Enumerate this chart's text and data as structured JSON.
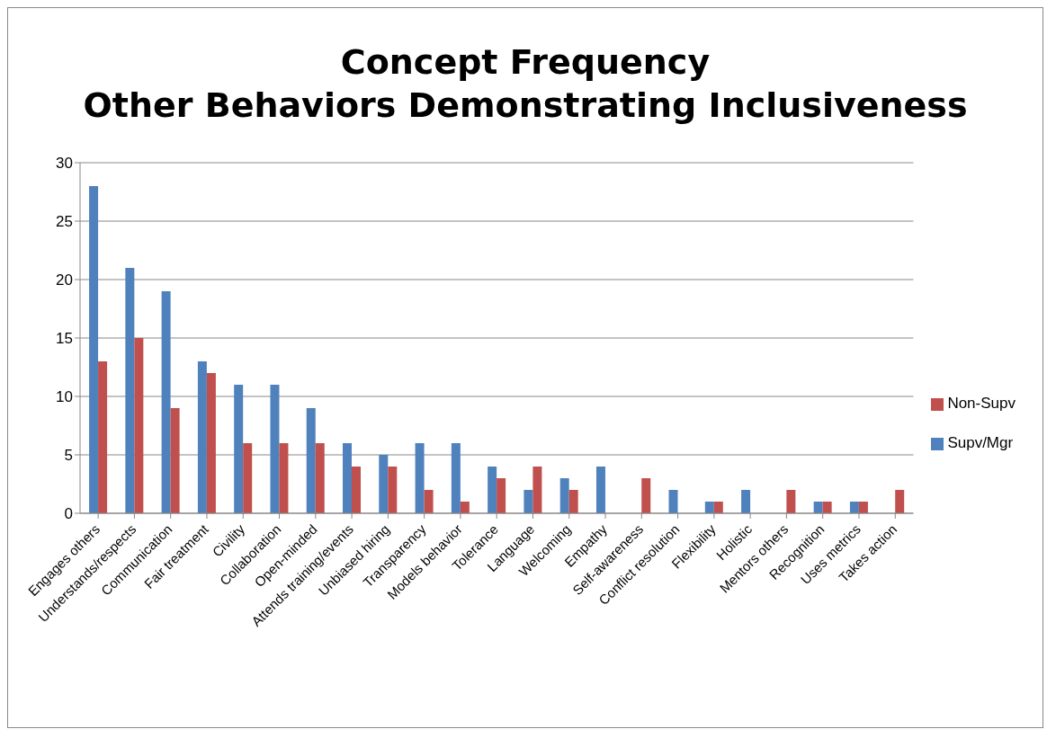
{
  "chart_data": {
    "type": "bar",
    "title": "Concept Frequency",
    "subtitle": "Other Behaviors Demonstrating Inclusiveness",
    "categories": [
      "Engages others",
      "Understands/respects",
      "Communication",
      "Fair treatment",
      "Civility",
      "Collaboration",
      "Open-minded",
      "Attends training/events",
      "Unbiased hiring",
      "Transparency",
      "Models behavior",
      "Tolerance",
      "Language",
      "Welcoming",
      "Empathy",
      "Self-awareness",
      "Conflict resolution",
      "Flexibility",
      "Holistic",
      "Mentors others",
      "Recognition",
      "Uses metrics",
      "Takes action"
    ],
    "series": [
      {
        "name": "Supv/Mgr",
        "color": "#4f81bd",
        "values": [
          28,
          21,
          19,
          13,
          11,
          11,
          9,
          6,
          5,
          6,
          6,
          4,
          2,
          3,
          4,
          0,
          2,
          1,
          2,
          0,
          1,
          1,
          0
        ]
      },
      {
        "name": "Non-Supv",
        "color": "#c0504d",
        "values": [
          13,
          15,
          9,
          12,
          6,
          6,
          6,
          4,
          4,
          2,
          1,
          3,
          4,
          2,
          0,
          3,
          0,
          1,
          0,
          2,
          1,
          1,
          2
        ]
      }
    ],
    "ylim": [
      0,
      30
    ],
    "yticks": [
      0,
      5,
      10,
      15,
      20,
      25,
      30
    ],
    "grid": "y",
    "legend": "right"
  }
}
